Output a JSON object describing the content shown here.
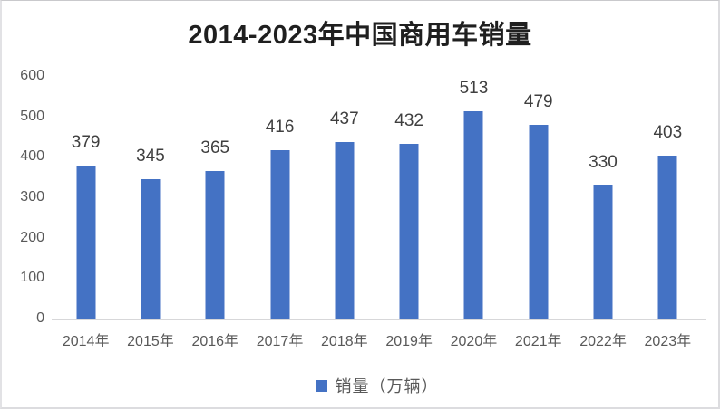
{
  "chart": {
    "title": "2014-2023年中国商用车销量",
    "legend_label": "销量（万辆）",
    "colors": {
      "bar": "#4472C4",
      "title_text": "#1f1f1f",
      "data_label": "#3f3f3f",
      "axis_label": "#595959",
      "axis_line": "#d7d7d9",
      "frame_border": "#dcdcdf",
      "background": "#ffffff"
    }
  },
  "chart_data": {
    "type": "bar",
    "title": "2014-2023年中国商用车销量",
    "categories": [
      "2014年",
      "2015年",
      "2016年",
      "2017年",
      "2018年",
      "2019年",
      "2020年",
      "2021年",
      "2022年",
      "2023年"
    ],
    "series": [
      {
        "name": "销量（万辆）",
        "values": [
          379,
          345,
          365,
          416,
          437,
          432,
          513,
          479,
          330,
          403
        ]
      }
    ],
    "data_labels_shown": true,
    "xlabel": "",
    "ylabel": "",
    "ylim": [
      0,
      600
    ],
    "y_ticks": [
      600,
      500,
      400,
      300,
      200,
      100,
      0
    ],
    "grid": false,
    "legend_position": "bottom"
  }
}
